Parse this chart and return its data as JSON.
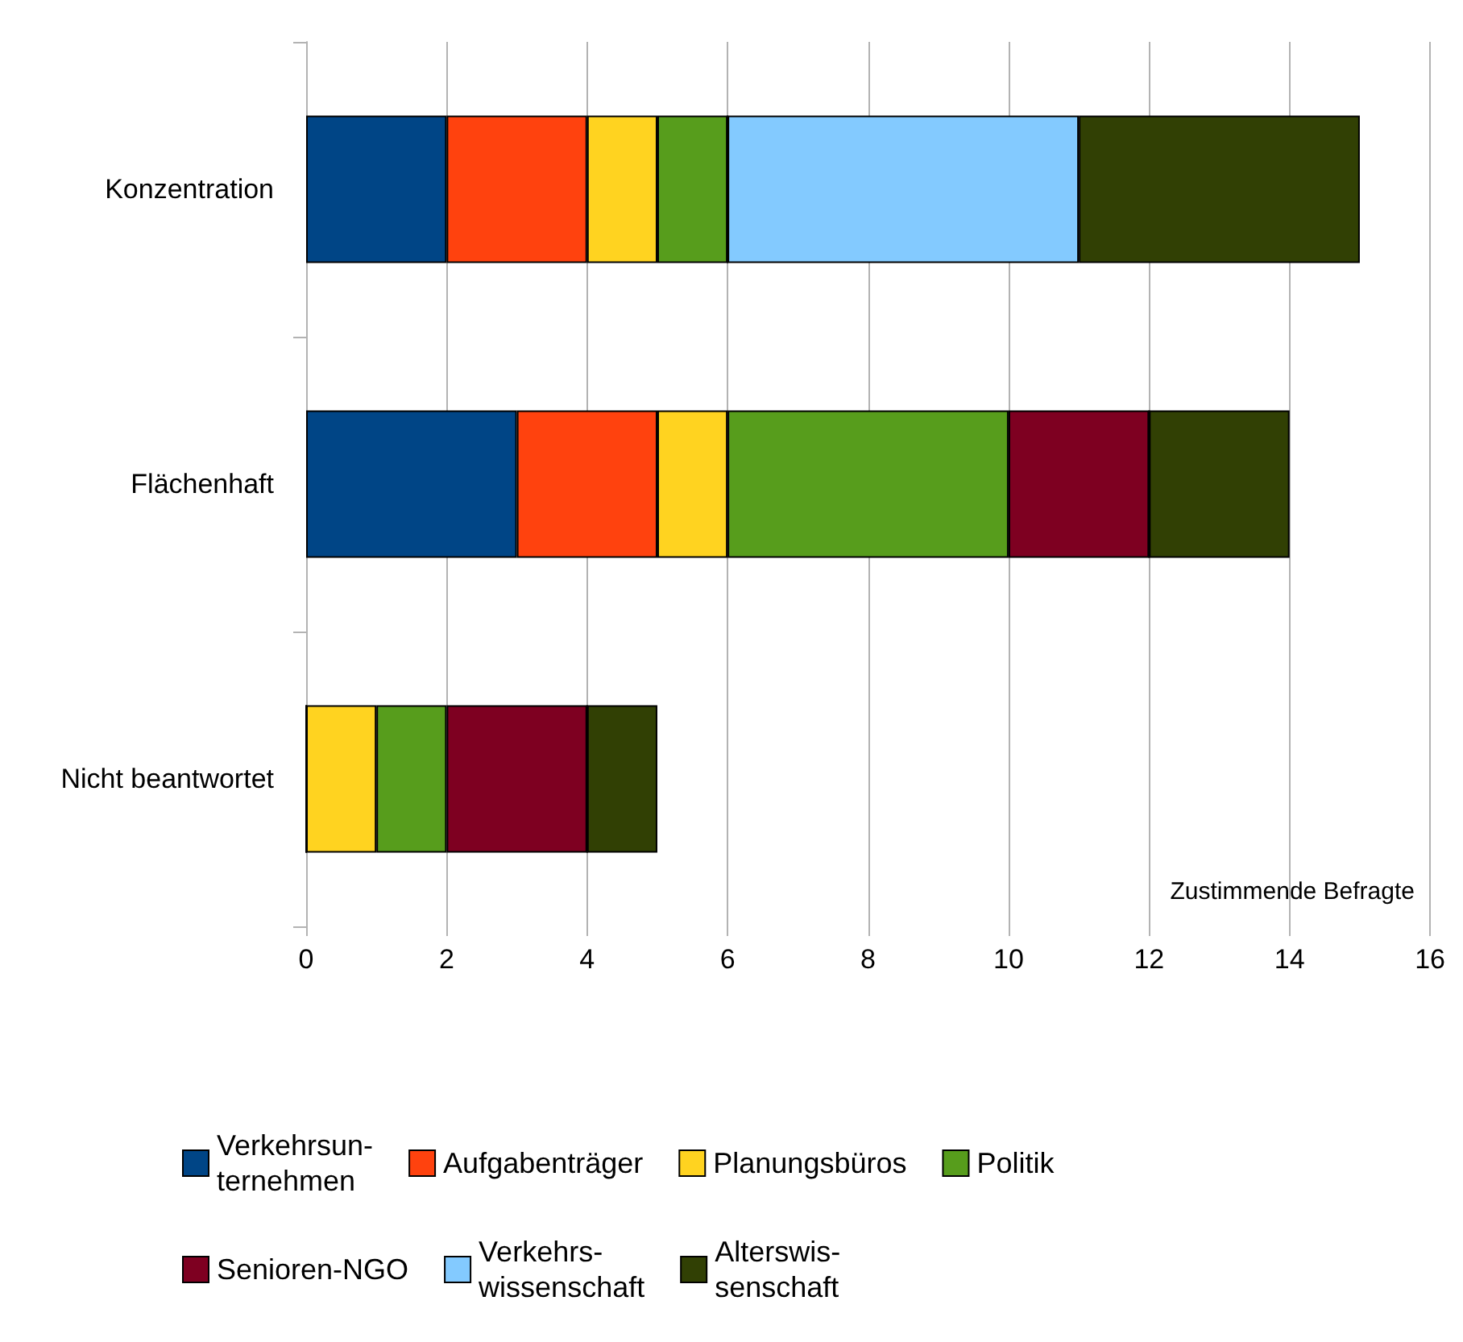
{
  "chart_data": {
    "type": "bar",
    "orientation": "horizontal",
    "stacked": true,
    "categories": [
      "Konzentration",
      "Flächenhaft",
      "Nicht beantwortet"
    ],
    "series": [
      {
        "name": "Verkehrsun-\nternehmen",
        "color": "#004586",
        "values": [
          2,
          3,
          0
        ]
      },
      {
        "name": "Aufgabenträger",
        "color": "#ff420e",
        "values": [
          2,
          2,
          0
        ]
      },
      {
        "name": "Planungsbüros",
        "color": "#ffd320",
        "values": [
          1,
          1,
          1
        ]
      },
      {
        "name": "Politik",
        "color": "#579d1c",
        "values": [
          1,
          4,
          1
        ]
      },
      {
        "name": "Senioren-NGO",
        "color": "#7e0021",
        "values": [
          0,
          2,
          2
        ]
      },
      {
        "name": "Verkehrs-\nwissenschaft",
        "color": "#83caff",
        "values": [
          5,
          0,
          0
        ]
      },
      {
        "name": "Alterswis-\nsenschaft",
        "color": "#314004",
        "values": [
          4,
          2,
          1
        ]
      }
    ],
    "xlim": [
      0,
      16
    ],
    "xticks": [
      0,
      2,
      4,
      6,
      8,
      10,
      12,
      14,
      16
    ],
    "annotations": [
      "Zustimmende Befragte"
    ],
    "grid": "x",
    "legend": "bottom"
  }
}
